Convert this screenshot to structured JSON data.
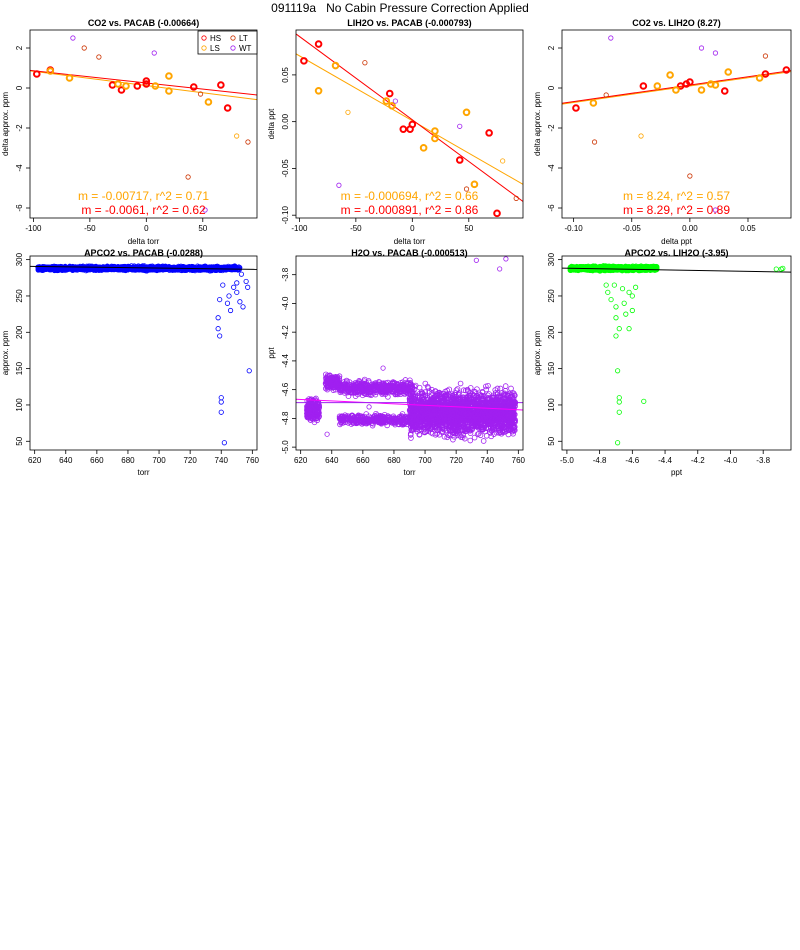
{
  "page": {
    "title": "091119a   No Cabin Pressure Correction Applied"
  },
  "colors": {
    "HS": "#ff0000",
    "LS": "#ffa500",
    "LT": "#cc3300",
    "WT": "#a020f0",
    "blue": "#0000ff",
    "purple": "#a020f0",
    "green": "#00ff00",
    "magenta": "#ff00ff"
  },
  "chart_data": [
    {
      "type": "scatter",
      "title": "CO2 vs. PACAB (-0.00664)",
      "xlabel": "delta torr",
      "ylabel": "delta approx. ppm",
      "xlim": [
        -103,
        98
      ],
      "ylim": [
        -6.5,
        2.9
      ],
      "xticks": [
        -100,
        -50,
        0,
        50
      ],
      "yticks": [
        -6,
        -4,
        -2,
        0,
        2
      ],
      "legend": {
        "position": "top-right",
        "entries": [
          {
            "label": "HS",
            "color": "#ff0000"
          },
          {
            "label": "LT",
            "color": "#cc3300"
          },
          {
            "label": "LS",
            "color": "#ffa500"
          },
          {
            "label": "WT",
            "color": "#a020f0"
          }
        ]
      },
      "lines": [
        {
          "slope": -0.00717,
          "intercept": 0.12,
          "color": "#ffa500"
        },
        {
          "slope": -0.0061,
          "intercept": 0.25,
          "color": "#ff0000"
        }
      ],
      "annotations": [
        {
          "text": "m = -0.00717, r^2 = 0.71",
          "color": "#ffa500"
        },
        {
          "text": "m = -0.0061, r^2 = 0.62",
          "color": "#ff0000"
        }
      ],
      "series": [
        {
          "name": "HS",
          "color": "#ff0000",
          "bold": true,
          "points": [
            [
              -97,
              0.7
            ],
            [
              -85,
              0.9
            ],
            [
              -30,
              0.15
            ],
            [
              -22,
              -0.1
            ],
            [
              -8,
              0.1
            ],
            [
              0,
              0.2
            ],
            [
              0,
              0.35
            ],
            [
              42,
              0.05
            ],
            [
              66,
              0.15
            ],
            [
              72,
              -1.0
            ]
          ]
        },
        {
          "name": "LS",
          "color": "#ffa500",
          "bold": true,
          "points": [
            [
              -85,
              0.85
            ],
            [
              -68,
              0.5
            ],
            [
              -25,
              0.2
            ],
            [
              -18,
              0.1
            ],
            [
              8,
              0.1
            ],
            [
              20,
              0.6
            ],
            [
              20,
              -0.15
            ],
            [
              55,
              -0.7
            ]
          ]
        },
        {
          "name": "LT",
          "color": "#cc3300",
          "bold": false,
          "points": [
            [
              -55,
              2.0
            ],
            [
              -42,
              1.55
            ],
            [
              37,
              -4.45
            ],
            [
              48,
              -0.3
            ],
            [
              90,
              -2.7
            ]
          ]
        },
        {
          "name": "WT",
          "color": "#a020f0",
          "bold": false,
          "points": [
            [
              -65,
              2.5
            ],
            [
              7,
              1.75
            ],
            [
              52,
              -6.1
            ]
          ]
        },
        {
          "name": "LS-thin",
          "color": "#ffa500",
          "bold": false,
          "points": [
            [
              80,
              -2.4
            ]
          ]
        }
      ]
    },
    {
      "type": "scatter",
      "title": "LIH2O vs. PACAB (-0.000793)",
      "xlabel": "delta torr",
      "ylabel": "delta ppt",
      "xlim": [
        -103,
        98
      ],
      "ylim": [
        -0.103,
        0.098
      ],
      "xticks": [
        -100,
        -50,
        0,
        50
      ],
      "yticks": [
        -0.1,
        -0.05,
        0.0,
        0.05
      ],
      "lines": [
        {
          "slope": -0.000694,
          "intercept": 0.001,
          "color": "#ffa500"
        },
        {
          "slope": -0.000891,
          "intercept": 0.002,
          "color": "#ff0000"
        }
      ],
      "annotations": [
        {
          "text": "m = -0.000694, r^2 = 0.66",
          "color": "#ffa500"
        },
        {
          "text": "m = -0.000891, r^2 = 0.86",
          "color": "#ff0000"
        }
      ],
      "series": [
        {
          "name": "HS",
          "color": "#ff0000",
          "bold": true,
          "points": [
            [
              -96,
              0.065
            ],
            [
              -83,
              0.083
            ],
            [
              -20,
              0.03
            ],
            [
              -8,
              -0.008
            ],
            [
              -2,
              -0.008
            ],
            [
              0,
              -0.003
            ],
            [
              42,
              -0.041
            ],
            [
              68,
              -0.012
            ],
            [
              75,
              -0.098
            ]
          ]
        },
        {
          "name": "LS",
          "color": "#ffa500",
          "bold": true,
          "points": [
            [
              -83,
              0.033
            ],
            [
              -68,
              0.06
            ],
            [
              -23,
              0.022
            ],
            [
              -18,
              0.017
            ],
            [
              10,
              -0.028
            ],
            [
              20,
              -0.018
            ],
            [
              20,
              -0.01
            ],
            [
              48,
              0.01
            ],
            [
              55,
              -0.067
            ]
          ]
        },
        {
          "name": "LT",
          "color": "#cc3300",
          "bold": false,
          "points": [
            [
              -42,
              0.063
            ],
            [
              48,
              -0.072
            ],
            [
              92,
              -0.082
            ]
          ]
        },
        {
          "name": "WT",
          "color": "#a020f0",
          "bold": false,
          "points": [
            [
              -65,
              -0.068
            ],
            [
              -15,
              0.022
            ],
            [
              42,
              -0.005
            ]
          ]
        },
        {
          "name": "LS-thin",
          "color": "#ffa500",
          "bold": false,
          "points": [
            [
              -57,
              0.01
            ],
            [
              80,
              -0.042
            ]
          ]
        }
      ]
    },
    {
      "type": "scatter",
      "title": "CO2 vs. LIH2O (8.27)",
      "xlabel": "delta ppt",
      "ylabel": "delta approx. ppm",
      "xlim": [
        -0.11,
        0.087
      ],
      "ylim": [
        -6.5,
        2.9
      ],
      "xticks": [
        -0.1,
        -0.05,
        0.0,
        0.05
      ],
      "yticks": [
        -6,
        -4,
        -2,
        0,
        2
      ],
      "lines": [
        {
          "slope": 8.24,
          "intercept": 0.1,
          "color": "#ffa500"
        },
        {
          "slope": 8.29,
          "intercept": 0.15,
          "color": "#ff0000"
        }
      ],
      "annotations": [
        {
          "text": "m = 8.24, r^2 = 0.57",
          "color": "#ffa500"
        },
        {
          "text": "m = 8.29, r^2 = 0.89",
          "color": "#ff0000"
        }
      ],
      "series": [
        {
          "name": "HS",
          "color": "#ff0000",
          "bold": true,
          "points": [
            [
              -0.098,
              -1.0
            ],
            [
              -0.04,
              0.1
            ],
            [
              -0.008,
              0.1
            ],
            [
              -0.003,
              0.2
            ],
            [
              0.0,
              0.3
            ],
            [
              0.03,
              -0.15
            ],
            [
              0.065,
              0.7
            ],
            [
              0.083,
              0.9
            ]
          ]
        },
        {
          "name": "LS",
          "color": "#ffa500",
          "bold": true,
          "points": [
            [
              -0.083,
              -0.75
            ],
            [
              -0.028,
              0.1
            ],
            [
              -0.017,
              0.65
            ],
            [
              -0.012,
              -0.1
            ],
            [
              0.01,
              -0.1
            ],
            [
              0.018,
              0.2
            ],
            [
              0.022,
              0.15
            ],
            [
              0.033,
              0.8
            ],
            [
              0.06,
              0.5
            ]
          ]
        },
        {
          "name": "LT",
          "color": "#cc3300",
          "bold": false,
          "points": [
            [
              -0.082,
              -2.7
            ],
            [
              -0.072,
              -0.35
            ],
            [
              0.0,
              -4.4
            ],
            [
              0.065,
              1.6
            ]
          ]
        },
        {
          "name": "WT",
          "color": "#a020f0",
          "bold": false,
          "points": [
            [
              -0.068,
              2.5
            ],
            [
              0.01,
              2.0
            ],
            [
              0.022,
              1.75
            ],
            [
              0.022,
              -6.1
            ]
          ]
        },
        {
          "name": "LS-thin",
          "color": "#ffa500",
          "bold": false,
          "points": [
            [
              -0.042,
              -2.4
            ]
          ]
        }
      ]
    },
    {
      "type": "scatter",
      "title": "APCO2 vs. PACAB (-0.0288)",
      "xlabel": "torr",
      "ylabel": "approx. ppm",
      "xlim": [
        617,
        763
      ],
      "ylim": [
        38,
        305
      ],
      "xticks": [
        620,
        640,
        660,
        680,
        700,
        720,
        740,
        760
      ],
      "yticks": [
        50,
        100,
        150,
        200,
        250,
        300
      ],
      "color": "#0000ff",
      "dense_band": {
        "x": [
          622,
          752
        ],
        "y_center": 288,
        "y_spread": 4,
        "count": 1500
      },
      "lines": [
        {
          "slope": -0.0288,
          "intercept": 308.5,
          "color": "#000000"
        }
      ],
      "series": [
        {
          "name": "points",
          "color": "#0000ff",
          "points": [
            [
              738,
              220
            ],
            [
              738,
              205
            ],
            [
              739,
              195
            ],
            [
              740,
              110
            ],
            [
              740,
              104
            ],
            [
              740,
              90
            ],
            [
              742,
              48
            ],
            [
              750,
              255
            ],
            [
              752,
              242
            ],
            [
              754,
              235
            ],
            [
              756,
              270
            ],
            [
              758,
              147
            ],
            [
              748,
              262
            ],
            [
              745,
              250
            ],
            [
              744,
              240
            ],
            [
              746,
              230
            ],
            [
              750,
              268
            ],
            [
              753,
              280
            ],
            [
              757,
              262
            ],
            [
              741,
              265
            ],
            [
              739,
              245
            ]
          ]
        }
      ]
    },
    {
      "type": "scatter",
      "title": "H2O vs. PACAB (-0.000513)",
      "xlabel": "torr",
      "ylabel": "ppt",
      "xlim": [
        617,
        763
      ],
      "ylim": [
        -5.02,
        -3.67
      ],
      "xticks": [
        620,
        640,
        660,
        680,
        700,
        720,
        740,
        760
      ],
      "yticks": [
        -5.0,
        -4.8,
        -4.6,
        -4.4,
        -4.2,
        -4.0,
        -3.8
      ],
      "color": "#a020f0",
      "clusters": [
        {
          "x": [
            624,
            632
          ],
          "y": [
            -4.84,
            -4.64
          ],
          "count": 220
        },
        {
          "x": [
            636,
            645
          ],
          "y": [
            -4.62,
            -4.48
          ],
          "count": 160
        },
        {
          "x": [
            645,
            692
          ],
          "y": [
            -4.66,
            -4.52
          ],
          "count": 420
        },
        {
          "x": [
            645,
            692
          ],
          "y": [
            -4.86,
            -4.76
          ],
          "count": 320
        },
        {
          "x": [
            690,
            758
          ],
          "y": [
            -4.97,
            -4.55
          ],
          "count": 2200
        }
      ],
      "lines": [
        {
          "slope": -0.000513,
          "intercept": -4.35,
          "color": "#ff00ff"
        },
        {
          "slope": 0.0,
          "intercept": -4.69,
          "color": "#a020f0"
        }
      ],
      "series": [
        {
          "name": "outliers",
          "color": "#a020f0",
          "points": [
            [
              733,
              -3.7
            ],
            [
              748,
              -3.76
            ],
            [
              752,
              -3.69
            ],
            [
              673,
              -4.45
            ],
            [
              655,
              -4.62
            ],
            [
              664,
              -4.72
            ],
            [
              637,
              -4.91
            ]
          ]
        }
      ]
    },
    {
      "type": "scatter",
      "title": "APCO2 vs. LIH2O (-3.95)",
      "xlabel": "ppt",
      "ylabel": "approx. ppm",
      "xlim": [
        -5.03,
        -3.63
      ],
      "ylim": [
        38,
        305
      ],
      "xticks": [
        -5.0,
        -4.8,
        -4.6,
        -4.4,
        -4.2,
        -4.0,
        -3.8
      ],
      "yticks": [
        50,
        100,
        150,
        200,
        250,
        300
      ],
      "color": "#00ff00",
      "dense_band": {
        "x": [
          -4.98,
          -4.45
        ],
        "y_center": 288,
        "y_spread": 4,
        "count": 1500
      },
      "lines": [
        {
          "slope": -3.95,
          "intercept": 268.5,
          "color": "#000000"
        }
      ],
      "series": [
        {
          "name": "points",
          "color": "#00ff00",
          "points": [
            [
              -3.72,
              287
            ],
            [
              -3.69,
              287
            ],
            [
              -3.68,
              288
            ],
            [
              -4.7,
              220
            ],
            [
              -4.68,
              205
            ],
            [
              -4.7,
              195
            ],
            [
              -4.69,
              147
            ],
            [
              -4.68,
              110
            ],
            [
              -4.68,
              104
            ],
            [
              -4.68,
              90
            ],
            [
              -4.69,
              48
            ],
            [
              -4.53,
              105
            ],
            [
              -4.62,
              205
            ],
            [
              -4.65,
              240
            ],
            [
              -4.6,
              250
            ],
            [
              -4.7,
              235
            ],
            [
              -4.73,
              245
            ],
            [
              -4.66,
              260
            ],
            [
              -4.6,
              230
            ],
            [
              -4.75,
              255
            ],
            [
              -4.64,
              225
            ],
            [
              -4.71,
              265
            ],
            [
              -4.58,
              262
            ],
            [
              -4.76,
              265
            ],
            [
              -4.62,
              255
            ]
          ]
        }
      ]
    }
  ]
}
